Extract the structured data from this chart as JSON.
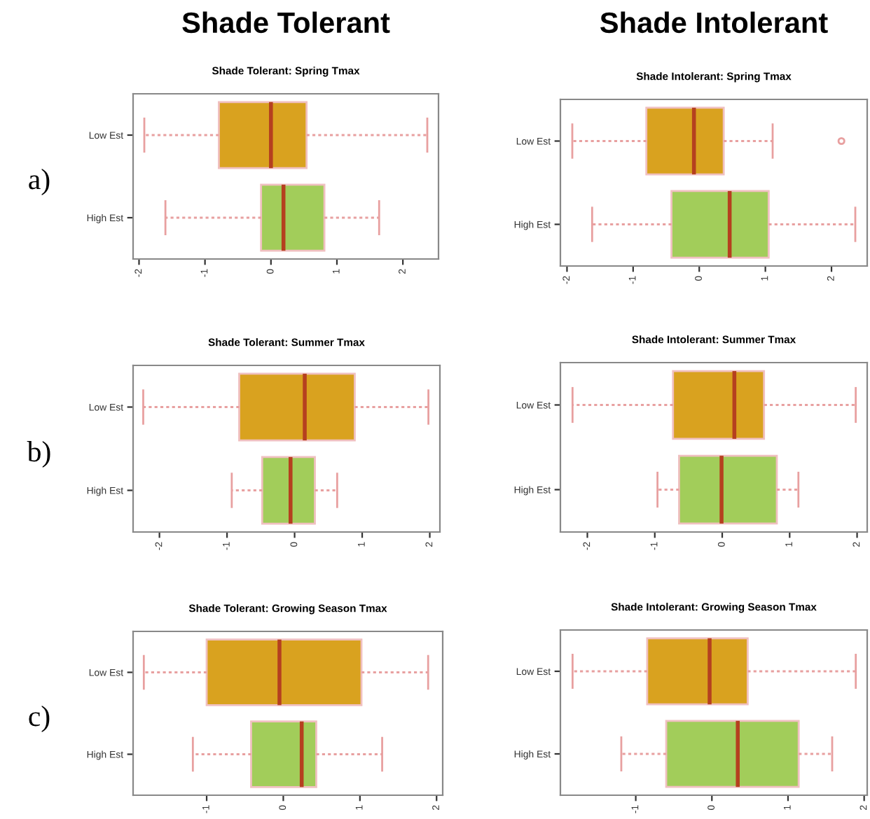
{
  "chart_data": [
    {
      "type": "box",
      "orientation": "horizontal",
      "title": "Shade Tolerant: Spring Tmax",
      "annotations": [
        "Shade Tolerant",
        "a)"
      ],
      "categories": [
        "Low Est",
        "High Est"
      ],
      "colors": [
        "#d9a21f",
        "#a2cd5a"
      ],
      "boxes": [
        {
          "low": -1.92,
          "q1": -0.79,
          "median": 0.0,
          "q3": 0.54,
          "high": 2.37
        },
        {
          "low": -1.6,
          "q1": -0.15,
          "median": 0.19,
          "q3": 0.81,
          "high": 1.64
        }
      ],
      "xlim": [
        -2.09,
        2.54
      ],
      "xticks": [
        -2,
        -1,
        0,
        1,
        2
      ],
      "grid": false
    },
    {
      "type": "box",
      "orientation": "horizontal",
      "title": "Shade Intolerant: Spring Tmax",
      "annotations": [
        "Shade Intolerant"
      ],
      "categories": [
        "Low Est",
        "High Est"
      ],
      "colors": [
        "#d9a21f",
        "#a2cd5a"
      ],
      "boxes": [
        {
          "low": -1.92,
          "q1": -0.8,
          "median": -0.08,
          "q3": 0.37,
          "high": 1.11,
          "outliers": [
            2.15
          ]
        },
        {
          "low": -1.62,
          "q1": -0.42,
          "median": 0.46,
          "q3": 1.05,
          "high": 2.36
        }
      ],
      "xlim": [
        -2.1,
        2.54
      ],
      "xticks": [
        -2,
        -1,
        0,
        1,
        2
      ],
      "grid": false
    },
    {
      "type": "box",
      "orientation": "horizontal",
      "title": "Shade Tolerant: Summer Tmax",
      "annotations": [
        "b)"
      ],
      "categories": [
        "Low Est",
        "High Est"
      ],
      "colors": [
        "#d9a21f",
        "#a2cd5a"
      ],
      "boxes": [
        {
          "low": -2.24,
          "q1": -0.82,
          "median": 0.15,
          "q3": 0.89,
          "high": 1.98
        },
        {
          "low": -0.93,
          "q1": -0.48,
          "median": -0.06,
          "q3": 0.3,
          "high": 0.63
        }
      ],
      "xlim": [
        -2.39,
        2.15
      ],
      "xticks": [
        -2,
        -1,
        0,
        1,
        2
      ],
      "grid": false
    },
    {
      "type": "box",
      "orientation": "horizontal",
      "title": "Shade Intolerant: Summer Tmax",
      "categories": [
        "Low Est",
        "High Est"
      ],
      "colors": [
        "#d9a21f",
        "#a2cd5a"
      ],
      "boxes": [
        {
          "low": -2.22,
          "q1": -0.73,
          "median": 0.18,
          "q3": 0.62,
          "high": 1.98
        },
        {
          "low": -0.96,
          "q1": -0.64,
          "median": -0.01,
          "q3": 0.81,
          "high": 1.13
        }
      ],
      "xlim": [
        -2.4,
        2.15
      ],
      "xticks": [
        -2,
        -1,
        0,
        1,
        2
      ],
      "grid": false
    },
    {
      "type": "box",
      "orientation": "horizontal",
      "title": "Shade Tolerant: Growing Season Tmax",
      "annotations": [
        "c)"
      ],
      "categories": [
        "Low Est",
        "High Est"
      ],
      "colors": [
        "#d9a21f",
        "#a2cd5a"
      ],
      "boxes": [
        {
          "low": -1.82,
          "q1": -1.0,
          "median": -0.05,
          "q3": 1.02,
          "high": 1.89
        },
        {
          "low": -1.18,
          "q1": -0.42,
          "median": 0.24,
          "q3": 0.43,
          "high": 1.29
        }
      ],
      "xlim": [
        -1.96,
        2.08
      ],
      "xticks": [
        -1,
        0,
        1,
        2
      ],
      "grid": false
    },
    {
      "type": "box",
      "orientation": "horizontal",
      "title": "Shade Intolerant: Growing Season Tmax",
      "categories": [
        "Low Est",
        "High Est"
      ],
      "colors": [
        "#d9a21f",
        "#a2cd5a"
      ],
      "boxes": [
        {
          "low": -1.83,
          "q1": -0.85,
          "median": -0.03,
          "q3": 0.47,
          "high": 1.89
        },
        {
          "low": -1.19,
          "q1": -0.6,
          "median": 0.34,
          "q3": 1.14,
          "high": 1.58
        }
      ],
      "xlim": [
        -1.99,
        2.04
      ],
      "xticks": [
        -1,
        0,
        1,
        2
      ],
      "grid": false
    }
  ]
}
